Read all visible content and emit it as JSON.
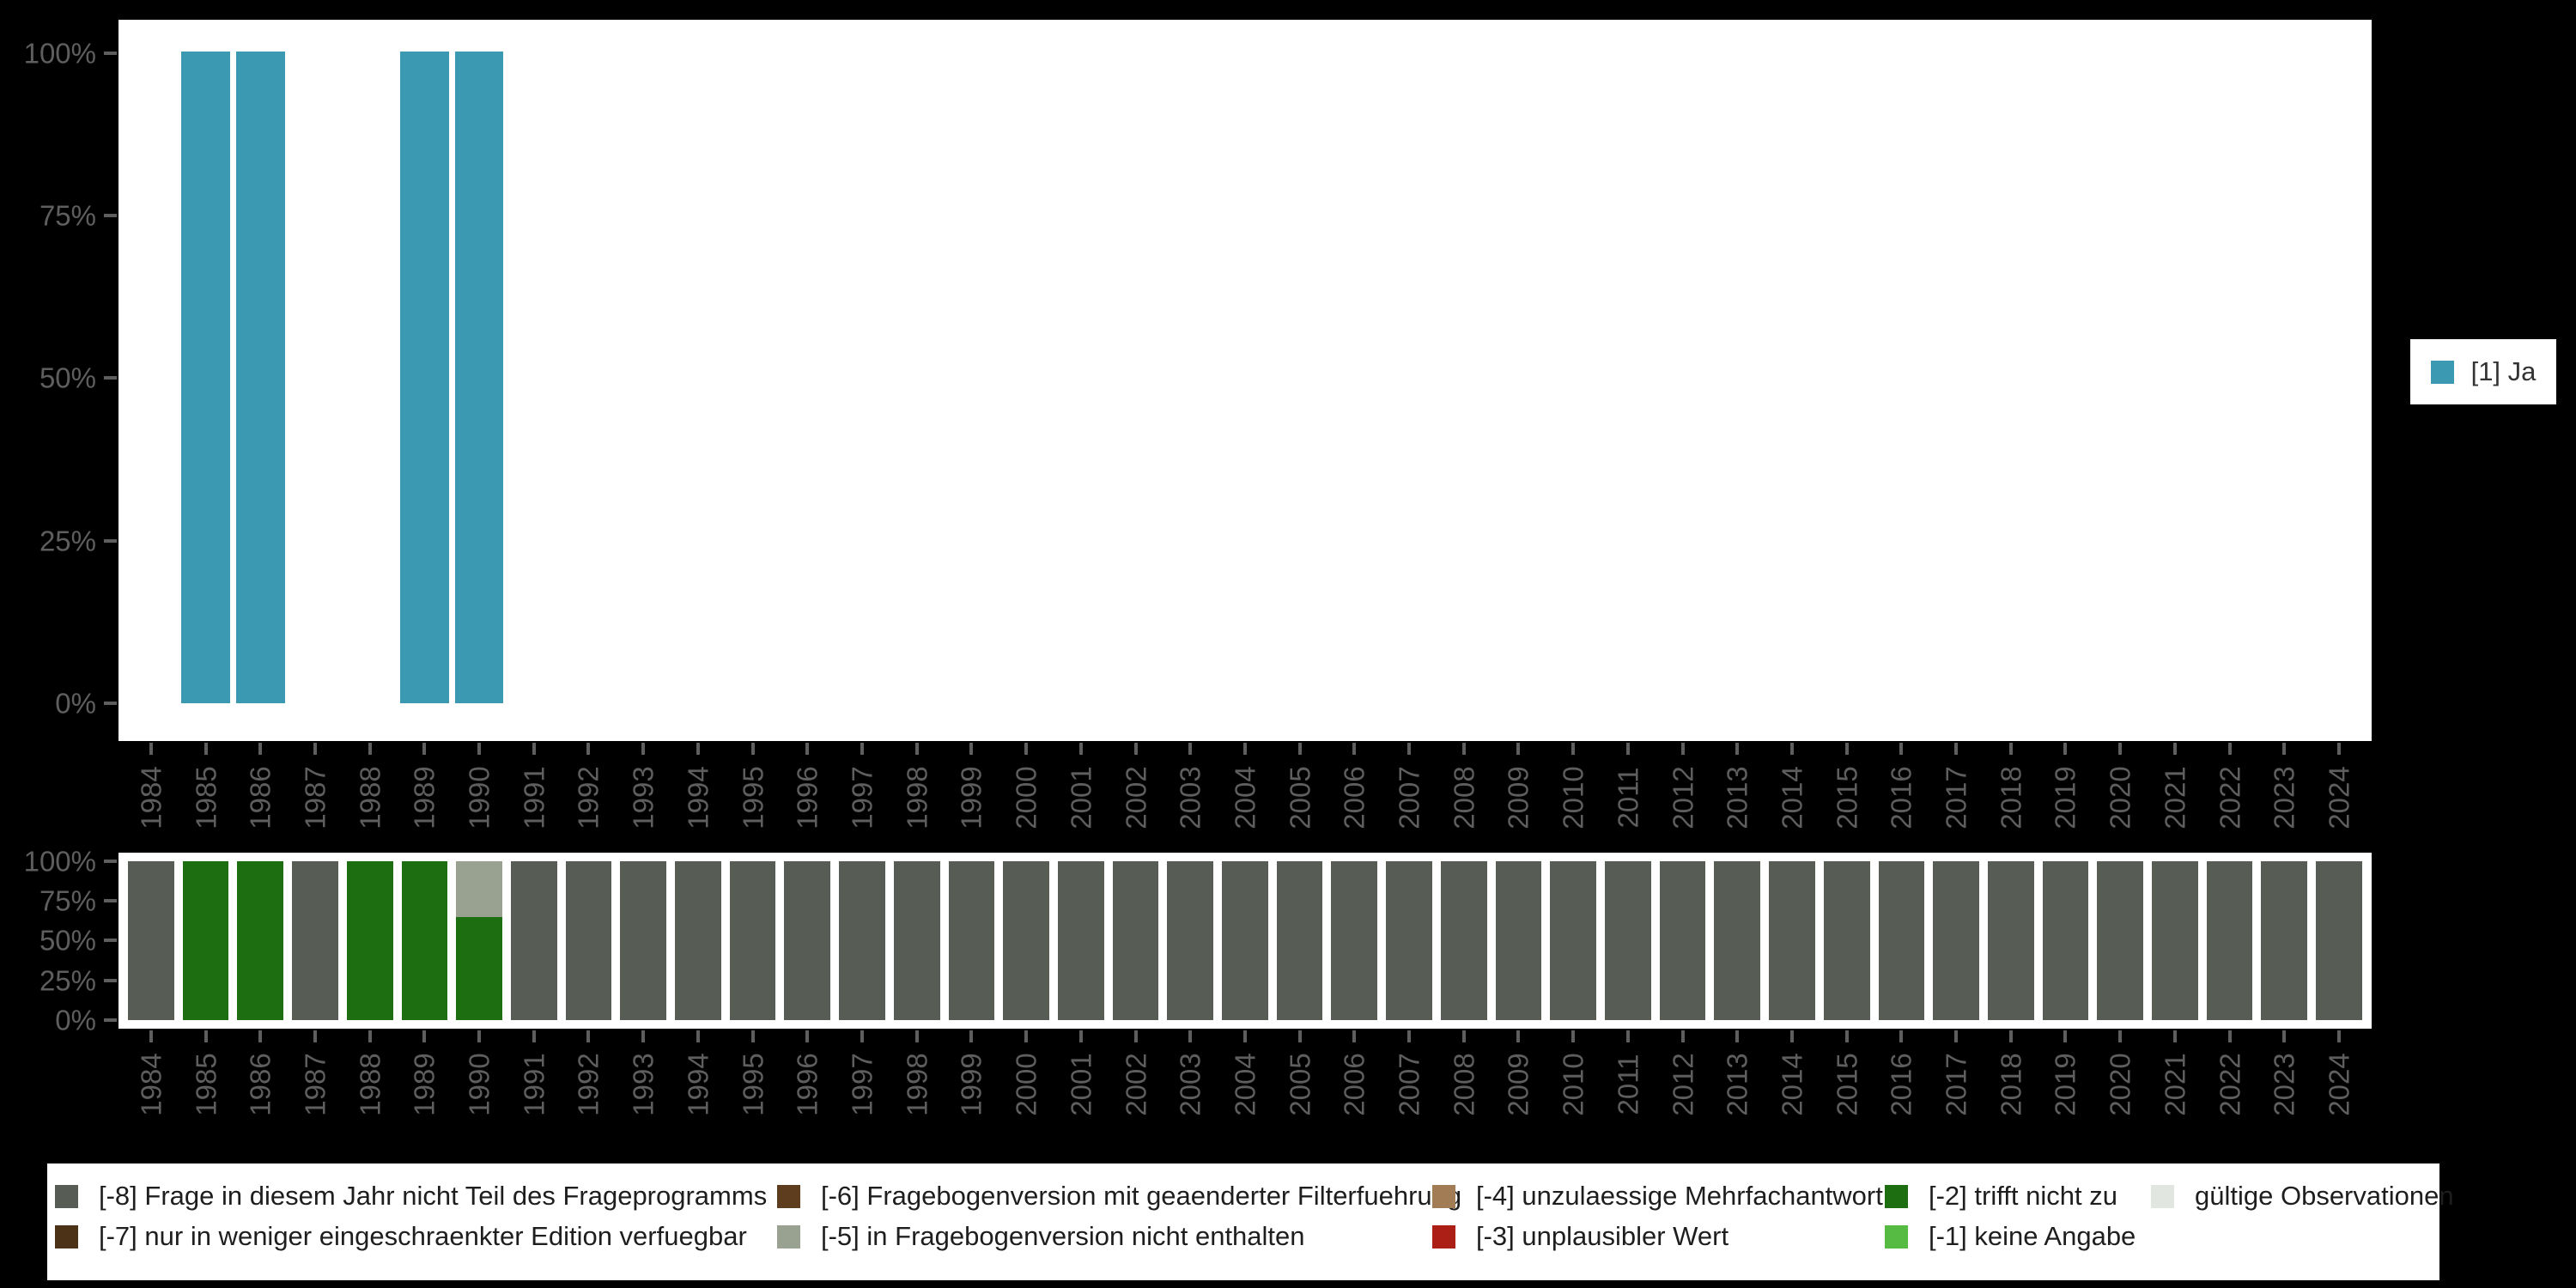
{
  "page": {
    "background": "#000000",
    "plot_background": "#ffffff",
    "axis_text_color": "#5e5e5e"
  },
  "top_legend": {
    "label": "[1] Ja",
    "color": "#3B99B1"
  },
  "chart_data": [
    {
      "id": "valid-answer-shares",
      "type": "bar",
      "stacked": true,
      "unit": "percent",
      "grid": false,
      "legend_position": "right",
      "ylim": [
        0,
        100
      ],
      "y_ticks": [
        "100%",
        "75%",
        "50%",
        "25%",
        "0%"
      ],
      "x": [
        1984,
        1985,
        1986,
        1987,
        1988,
        1989,
        1990,
        1991,
        1992,
        1993,
        1994,
        1995,
        1996,
        1997,
        1998,
        1999,
        2000,
        2001,
        2002,
        2003,
        2004,
        2005,
        2006,
        2007,
        2008,
        2009,
        2010,
        2011,
        2012,
        2013,
        2014,
        2015,
        2016,
        2017,
        2018,
        2019,
        2020,
        2021,
        2022,
        2023,
        2024
      ],
      "series": [
        {
          "name": "[1] Ja",
          "color": "#3B99B1",
          "values": [
            0,
            100,
            100,
            0,
            0,
            100,
            100,
            0,
            0,
            0,
            0,
            0,
            0,
            0,
            0,
            0,
            0,
            0,
            0,
            0,
            0,
            0,
            0,
            0,
            0,
            0,
            0,
            0,
            0,
            0,
            0,
            0,
            0,
            0,
            0,
            0,
            0,
            0,
            0,
            0,
            0
          ]
        }
      ]
    },
    {
      "id": "missing-values-composition",
      "type": "bar",
      "stacked": true,
      "unit": "percent",
      "grid": false,
      "legend_position": "bottom",
      "ylim": [
        0,
        100
      ],
      "y_ticks": [
        "100%",
        "75%",
        "50%",
        "25%",
        "0%"
      ],
      "x": [
        1984,
        1985,
        1986,
        1987,
        1988,
        1989,
        1990,
        1991,
        1992,
        1993,
        1994,
        1995,
        1996,
        1997,
        1998,
        1999,
        2000,
        2001,
        2002,
        2003,
        2004,
        2005,
        2006,
        2007,
        2008,
        2009,
        2010,
        2011,
        2012,
        2013,
        2014,
        2015,
        2016,
        2017,
        2018,
        2019,
        2020,
        2021,
        2022,
        2023,
        2024
      ],
      "series": [
        {
          "name": "[-8] Frage in diesem Jahr nicht Teil des Frageprogramms",
          "color": "#575D55",
          "values": [
            100,
            0,
            0,
            100,
            0,
            0,
            0,
            100,
            100,
            100,
            100,
            100,
            100,
            100,
            100,
            100,
            100,
            100,
            100,
            100,
            100,
            100,
            100,
            100,
            100,
            100,
            100,
            100,
            100,
            100,
            100,
            100,
            100,
            100,
            100,
            100,
            100,
            100,
            100,
            100,
            100
          ]
        },
        {
          "name": "[-2] trifft nicht zu",
          "color": "#1D6E10",
          "values": [
            0,
            100,
            100,
            0,
            100,
            100,
            65,
            0,
            0,
            0,
            0,
            0,
            0,
            0,
            0,
            0,
            0,
            0,
            0,
            0,
            0,
            0,
            0,
            0,
            0,
            0,
            0,
            0,
            0,
            0,
            0,
            0,
            0,
            0,
            0,
            0,
            0,
            0,
            0,
            0,
            0
          ]
        },
        {
          "name": "[-5] in Fragebogenversion nicht enthalten",
          "color": "#99A191",
          "values": [
            0,
            0,
            0,
            0,
            0,
            0,
            35,
            0,
            0,
            0,
            0,
            0,
            0,
            0,
            0,
            0,
            0,
            0,
            0,
            0,
            0,
            0,
            0,
            0,
            0,
            0,
            0,
            0,
            0,
            0,
            0,
            0,
            0,
            0,
            0,
            0,
            0,
            0,
            0,
            0,
            0
          ]
        }
      ]
    }
  ],
  "missing_legend": {
    "columns": [
      {
        "entries": [
          {
            "label": "[-8] Frage in diesem Jahr nicht Teil des Frageprogramms",
            "color": "#575D55"
          },
          {
            "label": "[-7] nur in weniger eingeschraenkter Edition verfuegbar",
            "color": "#4C3317"
          }
        ]
      },
      {
        "entries": [
          {
            "label": "[-6] Fragebogenversion mit geaenderter Filterfuehrung",
            "color": "#5E3C1E"
          },
          {
            "label": "[-5] in Fragebogenversion nicht enthalten",
            "color": "#99A191"
          }
        ]
      },
      {
        "entries": [
          {
            "label": "[-4] unzulaessige Mehrfachantwort",
            "color": "#A27C54"
          },
          {
            "label": "[-3] unplausibler Wert",
            "color": "#AB1F17"
          }
        ]
      },
      {
        "entries": [
          {
            "label": "[-2] trifft nicht zu",
            "color": "#1D6E10"
          },
          {
            "label": "[-1] keine Angabe",
            "color": "#55BB42"
          }
        ]
      },
      {
        "entries": [
          {
            "label": "gültige Observationen",
            "color": "#E2E6E0"
          }
        ]
      }
    ]
  }
}
